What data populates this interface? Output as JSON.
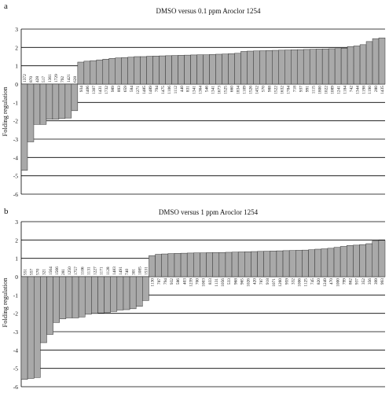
{
  "chart_data": [
    {
      "panel_label": "a",
      "type": "bar",
      "title": "DMSO versus 0.1 ppm Aroclor 1254",
      "ylabel": "Folding regulation",
      "xlabel": "",
      "ylim": [
        -6,
        3
      ],
      "yticks": [
        3,
        2,
        1,
        0,
        -1,
        -2,
        -3,
        -4,
        -5,
        -6
      ],
      "grid": true,
      "bar_color": "#a9a9a9",
      "categories": [
        "1372",
        "870",
        "428",
        "517",
        "1361",
        "1729",
        "792",
        "1421",
        "628",
        "934",
        "1406",
        "1307",
        "1431",
        "1732",
        "989",
        "893",
        "659",
        "584",
        "1271",
        "1485",
        "1489",
        "794",
        "1475",
        "1106",
        "1112",
        "440",
        "831",
        "1341",
        "1364",
        "546",
        "1341",
        "1673",
        "1525",
        "660",
        "1834",
        "1109",
        "1526",
        "1452",
        "570",
        "988",
        "1522",
        "1632",
        "1784",
        "718",
        "937",
        "991",
        "1115",
        "1800",
        "1022",
        "1089",
        "1241",
        "1184",
        "742",
        "1344",
        "1198",
        "1190",
        "280",
        "1435"
      ],
      "values": [
        -4.7,
        -3.15,
        -2.2,
        -2.2,
        -1.92,
        -1.92,
        -1.88,
        -1.85,
        -1.45,
        1.2,
        1.25,
        1.28,
        1.32,
        1.36,
        1.4,
        1.43,
        1.45,
        1.47,
        1.5,
        1.5,
        1.52,
        1.53,
        1.54,
        1.55,
        1.56,
        1.57,
        1.58,
        1.59,
        1.6,
        1.6,
        1.62,
        1.63,
        1.64,
        1.66,
        1.68,
        1.78,
        1.8,
        1.81,
        1.82,
        1.83,
        1.84,
        1.85,
        1.86,
        1.87,
        1.88,
        1.89,
        1.9,
        1.91,
        1.92,
        1.93,
        1.94,
        1.96,
        2.05,
        2.08,
        2.15,
        2.32,
        2.48,
        2.52
      ]
    },
    {
      "panel_label": "b",
      "type": "bar",
      "title": "DMSO versus 1 ppm Aroclor 1254",
      "ylabel": "Folding regulation",
      "xlabel": "",
      "ylim": [
        -6,
        3
      ],
      "yticks": [
        3,
        2,
        1,
        0,
        -1,
        -2,
        -3,
        -4,
        -5,
        -6
      ],
      "grid": true,
      "bar_color": "#a9a9a9",
      "categories": [
        "551",
        "557",
        "570",
        "321",
        "1564",
        "1566",
        "281",
        "1250",
        "1757",
        "1106",
        "1131",
        "1227",
        "1171",
        "1128",
        "1483",
        "1491",
        "740",
        "301",
        "1085",
        "1531",
        "1130",
        "787",
        "794",
        "932",
        "586",
        "403",
        "1239",
        "700",
        "1003",
        "833",
        "1131",
        "1056",
        "533",
        "968",
        "965",
        "1026",
        "420",
        "787",
        "918",
        "1071",
        "1260",
        "959",
        "332",
        "1006",
        "1125",
        "745",
        "820",
        "1249",
        "470",
        "1000",
        "799",
        "862",
        "937",
        "352",
        "356",
        "399",
        "993"
      ],
      "values": [
        -5.6,
        -5.55,
        -5.5,
        -3.6,
        -3.15,
        -2.5,
        -2.3,
        -2.25,
        -2.25,
        -2.2,
        -2.05,
        -2.0,
        -1.98,
        -1.95,
        -1.9,
        -1.82,
        -1.8,
        -1.75,
        -1.62,
        -1.3,
        1.15,
        1.22,
        1.24,
        1.26,
        1.27,
        1.28,
        1.29,
        1.3,
        1.3,
        1.31,
        1.32,
        1.32,
        1.33,
        1.34,
        1.35,
        1.36,
        1.37,
        1.38,
        1.39,
        1.4,
        1.41,
        1.42,
        1.43,
        1.44,
        1.45,
        1.47,
        1.5,
        1.52,
        1.55,
        1.6,
        1.65,
        1.7,
        1.72,
        1.75,
        1.8,
        1.95,
        1.98
      ]
    }
  ]
}
